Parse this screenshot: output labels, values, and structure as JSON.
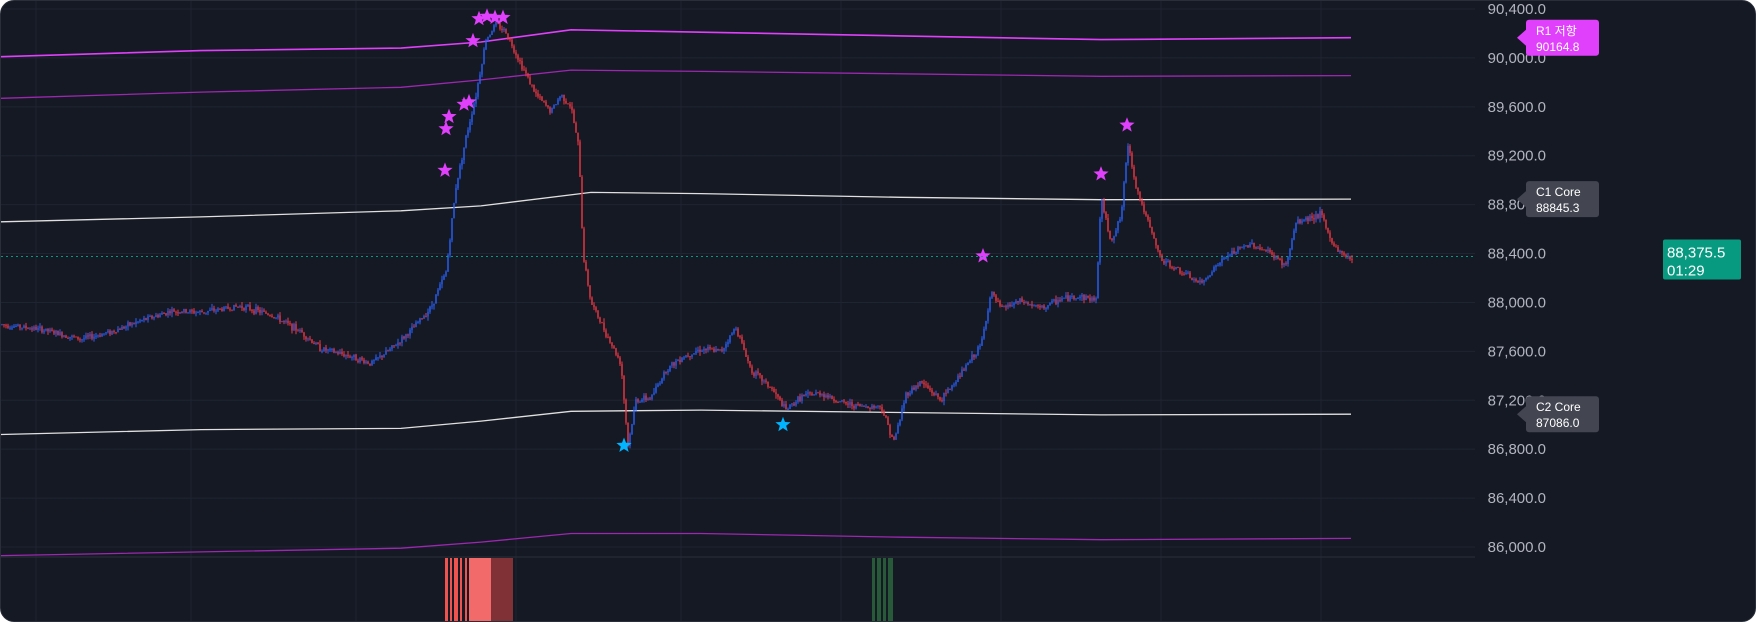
{
  "chart_data": {
    "type": "candlestick",
    "y_axis": {
      "ticks": [
        "90,400.0",
        "90,000.0",
        "89,600.0",
        "89,200.0",
        "88,800.0",
        "88,400.0",
        "88,000.0",
        "87,600.0",
        "87,200.0",
        "86,800.0",
        "86,400.0",
        "86,000.0"
      ],
      "range": [
        85900,
        90430
      ]
    },
    "current_price": {
      "value": "88,375.5",
      "countdown": "01:29",
      "color": "#089981"
    },
    "labels": [
      {
        "id": "r1",
        "line1": "R1 저항",
        "line2": "90164.8",
        "value": 90164.8,
        "color": "#e040fb"
      },
      {
        "id": "c1",
        "line1": "C1 Core",
        "line2": "88845.3",
        "value": 88845.3,
        "color": "#434651"
      },
      {
        "id": "c2",
        "line1": "C2 Core",
        "line2": "87086.0",
        "value": 87086.0,
        "color": "#434651"
      }
    ],
    "colors": {
      "up": "#2962ff",
      "down": "#f23645",
      "band_outer": "#e040fb",
      "band_inner": "#9c27b0",
      "core": "#e0e0e0",
      "star_top": "#e040fb",
      "star_bottom": "#00b4ff"
    },
    "price_path": [
      [
        0,
        87820
      ],
      [
        40,
        87780
      ],
      [
        80,
        87700
      ],
      [
        110,
        87760
      ],
      [
        140,
        87850
      ],
      [
        170,
        87930
      ],
      [
        200,
        87920
      ],
      [
        240,
        87970
      ],
      [
        270,
        87900
      ],
      [
        300,
        87760
      ],
      [
        320,
        87620
      ],
      [
        350,
        87560
      ],
      [
        370,
        87500
      ],
      [
        390,
        87620
      ],
      [
        410,
        87770
      ],
      [
        430,
        87960
      ],
      [
        445,
        88250
      ],
      [
        455,
        88950
      ],
      [
        465,
        89350
      ],
      [
        475,
        89700
      ],
      [
        485,
        90150
      ],
      [
        495,
        90280
      ],
      [
        505,
        90210
      ],
      [
        520,
        89950
      ],
      [
        535,
        89700
      ],
      [
        550,
        89560
      ],
      [
        560,
        89700
      ],
      [
        570,
        89600
      ],
      [
        578,
        89250
      ],
      [
        582,
        88400
      ],
      [
        590,
        88000
      ],
      [
        605,
        87750
      ],
      [
        620,
        87500
      ],
      [
        627,
        86830
      ],
      [
        635,
        87200
      ],
      [
        650,
        87220
      ],
      [
        665,
        87450
      ],
      [
        680,
        87550
      ],
      [
        700,
        87620
      ],
      [
        720,
        87600
      ],
      [
        735,
        87800
      ],
      [
        750,
        87450
      ],
      [
        770,
        87300
      ],
      [
        785,
        87120
      ],
      [
        800,
        87230
      ],
      [
        820,
        87260
      ],
      [
        840,
        87180
      ],
      [
        860,
        87150
      ],
      [
        880,
        87150
      ],
      [
        893,
        86860
      ],
      [
        905,
        87250
      ],
      [
        920,
        87350
      ],
      [
        940,
        87200
      ],
      [
        960,
        87420
      ],
      [
        980,
        87650
      ],
      [
        990,
        88080
      ],
      [
        1000,
        87950
      ],
      [
        1020,
        88010
      ],
      [
        1040,
        87950
      ],
      [
        1060,
        88030
      ],
      [
        1080,
        88050
      ],
      [
        1095,
        88020
      ],
      [
        1100,
        88850
      ],
      [
        1110,
        88500
      ],
      [
        1120,
        88700
      ],
      [
        1127,
        89300
      ],
      [
        1135,
        88950
      ],
      [
        1145,
        88700
      ],
      [
        1160,
        88350
      ],
      [
        1180,
        88250
      ],
      [
        1200,
        88150
      ],
      [
        1215,
        88300
      ],
      [
        1230,
        88400
      ],
      [
        1250,
        88480
      ],
      [
        1270,
        88400
      ],
      [
        1285,
        88300
      ],
      [
        1295,
        88650
      ],
      [
        1310,
        88700
      ],
      [
        1320,
        88720
      ],
      [
        1330,
        88500
      ],
      [
        1340,
        88400
      ],
      [
        1352,
        88360
      ]
    ],
    "bands": {
      "r1": [
        [
          0,
          90010
        ],
        [
          200,
          90060
        ],
        [
          400,
          90080
        ],
        [
          480,
          90130
        ],
        [
          570,
          90230
        ],
        [
          700,
          90210
        ],
        [
          900,
          90180
        ],
        [
          1100,
          90150
        ],
        [
          1350,
          90165
        ]
      ],
      "r2": [
        [
          0,
          89670
        ],
        [
          200,
          89720
        ],
        [
          400,
          89760
        ],
        [
          480,
          89820
        ],
        [
          570,
          89900
        ],
        [
          700,
          89890
        ],
        [
          900,
          89870
        ],
        [
          1100,
          89850
        ],
        [
          1350,
          89855
        ]
      ],
      "c1": [
        [
          0,
          88660
        ],
        [
          200,
          88700
        ],
        [
          400,
          88750
        ],
        [
          480,
          88790
        ],
        [
          590,
          88900
        ],
        [
          700,
          88890
        ],
        [
          900,
          88860
        ],
        [
          1100,
          88840
        ],
        [
          1350,
          88845
        ]
      ],
      "c2": [
        [
          0,
          86920
        ],
        [
          200,
          86960
        ],
        [
          400,
          86970
        ],
        [
          480,
          87030
        ],
        [
          570,
          87110
        ],
        [
          700,
          87120
        ],
        [
          900,
          87100
        ],
        [
          1100,
          87080
        ],
        [
          1350,
          87086
        ]
      ],
      "s1": [
        [
          0,
          85930
        ],
        [
          200,
          85960
        ],
        [
          400,
          85990
        ],
        [
          480,
          86040
        ],
        [
          570,
          86110
        ],
        [
          700,
          86110
        ],
        [
          900,
          86080
        ],
        [
          1100,
          86060
        ],
        [
          1350,
          86070
        ]
      ]
    },
    "stars_top": [
      [
        444,
        89080
      ],
      [
        445,
        89420
      ],
      [
        448,
        89520
      ],
      [
        463,
        89620
      ],
      [
        468,
        89640
      ],
      [
        472,
        90140
      ],
      [
        478,
        90320
      ],
      [
        486,
        90340
      ],
      [
        494,
        90330
      ],
      [
        502,
        90330
      ],
      [
        982,
        88380
      ],
      [
        1100,
        89050
      ],
      [
        1126,
        89450
      ]
    ],
    "stars_bottom": [
      [
        623,
        86830
      ],
      [
        782,
        87000
      ]
    ],
    "volume_bars": [
      {
        "x": 444,
        "w": 3,
        "color": "#ef5350"
      },
      {
        "x": 449,
        "w": 2,
        "color": "#ef5350"
      },
      {
        "x": 453,
        "w": 4,
        "color": "#ef5350"
      },
      {
        "x": 459,
        "w": 2,
        "color": "#ef5350"
      },
      {
        "x": 464,
        "w": 2,
        "color": "#ef5350"
      },
      {
        "x": 468,
        "w": 22,
        "color": "#f26a6a"
      },
      {
        "x": 490,
        "w": 22,
        "color": "#803135"
      },
      {
        "x": 871,
        "w": 3,
        "color": "#285a3a"
      },
      {
        "x": 876,
        "w": 4,
        "color": "#285a3a"
      },
      {
        "x": 882,
        "w": 3,
        "color": "#285a3a"
      },
      {
        "x": 887,
        "w": 5,
        "color": "#285a3a"
      }
    ]
  }
}
